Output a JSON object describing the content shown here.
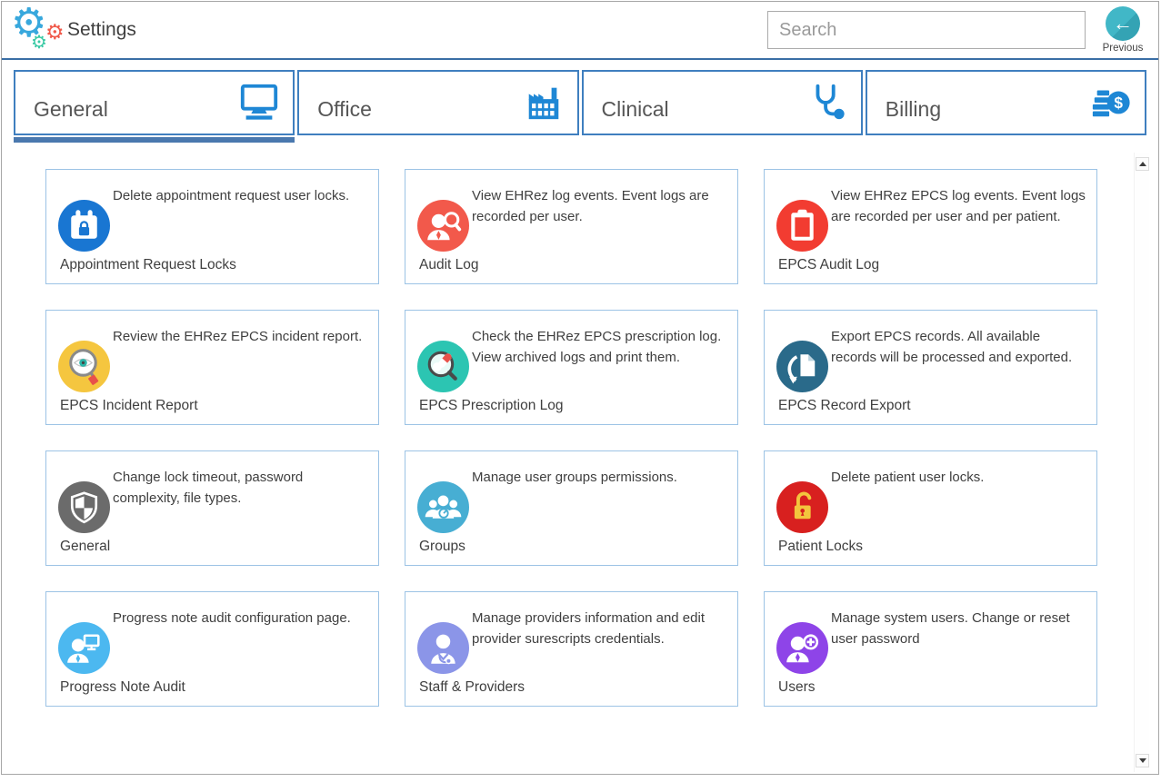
{
  "header": {
    "title": "Settings",
    "search_placeholder": "Search",
    "previous_label": "Previous",
    "icons": {
      "gear_glyph": "⚙",
      "back_arrow_glyph": "←"
    },
    "colors": {
      "header_line": "#3a6ea5",
      "previous_button": "#3db5c6"
    }
  },
  "tabs": [
    {
      "label": "General",
      "icon": "monitor-icon",
      "active": true
    },
    {
      "label": "Office",
      "icon": "factory-icon",
      "active": false
    },
    {
      "label": "Clinical",
      "icon": "stethoscope-icon",
      "active": false
    },
    {
      "label": "Billing",
      "icon": "billing-icon",
      "active": false
    }
  ],
  "tab_style": {
    "border_color": "#3f7fbf",
    "icon_color": "#1e87d5",
    "active_underline": "#4a78ae"
  },
  "cards": [
    {
      "title": "Appointment Request Locks",
      "description": "Delete appointment request user locks.",
      "icon": "calendar-lock-icon",
      "icon_color": "#1976d2"
    },
    {
      "title": "Audit Log",
      "description": "View EHRez log events. Event logs are recorded per user.",
      "icon": "user-search-icon",
      "icon_color": "#f2594b"
    },
    {
      "title": "EPCS Audit Log",
      "description": "View EHRez EPCS log events. Event logs are recorded per user and per patient.",
      "icon": "clipboard-icon",
      "icon_color": "#f23c31"
    },
    {
      "title": "EPCS Incident Report",
      "description": "Review the EHRez EPCS incident report.",
      "icon": "eye-magnifier-icon",
      "icon_color": "#f5c63f"
    },
    {
      "title": "EPCS Prescription Log",
      "description": "Check the EHRez EPCS prescription log. View archived logs and print them.",
      "icon": "pills-magnifier-icon",
      "icon_color": "#2cc5b2"
    },
    {
      "title": "EPCS Record Export",
      "description": "Export EPCS records. All available records will be processed and exported.",
      "icon": "document-export-icon",
      "icon_color": "#2a6a8a"
    },
    {
      "title": "General",
      "description": "Change lock timeout, password complexity, file types.",
      "icon": "shield-icon",
      "icon_color": "#6b6b6b"
    },
    {
      "title": "Groups",
      "description": "Manage user groups permissions.",
      "icon": "user-group-icon",
      "icon_color": "#47aed3"
    },
    {
      "title": "Patient Locks",
      "description": "Delete patient user locks.",
      "icon": "open-padlock-icon",
      "icon_color": "#d8201f"
    },
    {
      "title": "Progress Note Audit",
      "description": "Progress note audit configuration page.",
      "icon": "person-monitor-icon",
      "icon_color": "#4cb8f0"
    },
    {
      "title": "Staff & Providers",
      "description": "Manage providers information and edit provider surescripts credentials.",
      "icon": "doctor-icon",
      "icon_color": "#8b95e8"
    },
    {
      "title": "Users",
      "description": "Manage system users. Change or reset user password",
      "icon": "user-plus-icon",
      "icon_color": "#8e44e8"
    }
  ],
  "card_style": {
    "border_color": "#9cc3e5"
  }
}
